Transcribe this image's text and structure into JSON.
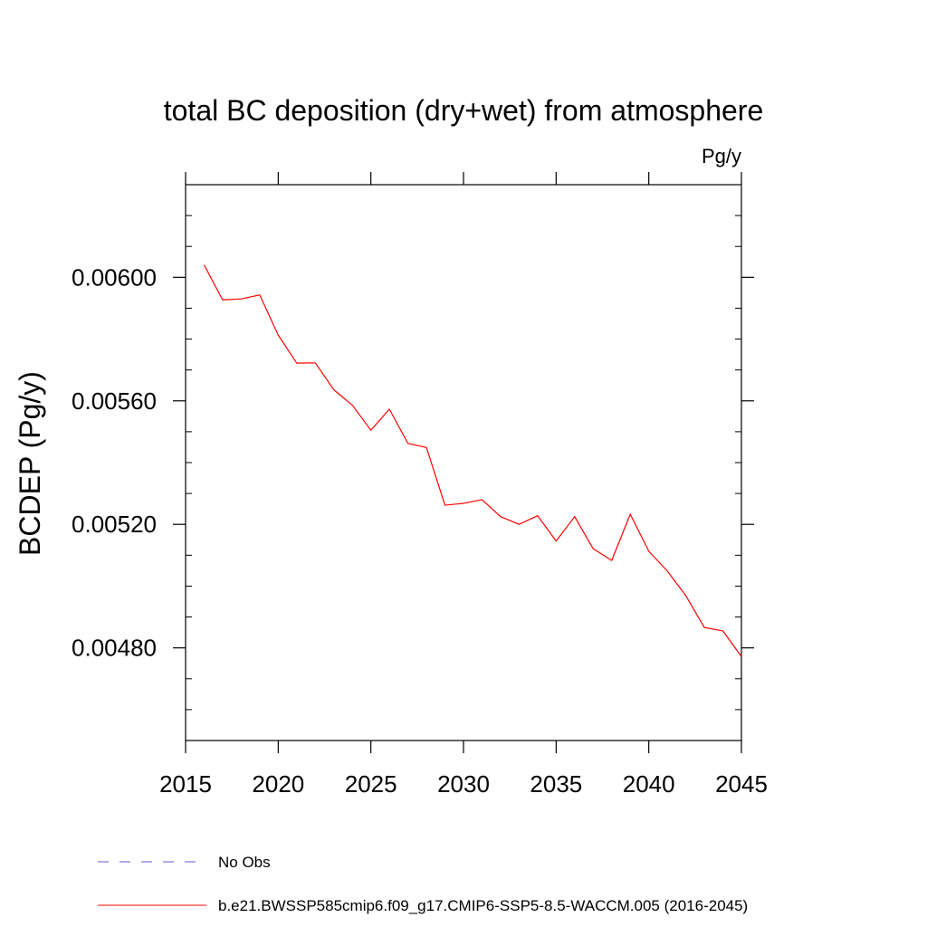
{
  "chart_data": {
    "type": "line",
    "title": "total BC deposition (dry+wet) from atmosphere",
    "units_label": "Pg/y",
    "ylabel": "BCDEP  (Pg/y)",
    "xlabel": "",
    "xlim": [
      2015,
      2045
    ],
    "ylim": [
      0.0045,
      0.0063
    ],
    "x_ticks": [
      2015,
      2020,
      2025,
      2030,
      2035,
      2040,
      2045
    ],
    "x_tick_labels": [
      "2015",
      "2020",
      "2025",
      "2030",
      "2035",
      "2040",
      "2045"
    ],
    "y_ticks": [
      0.0048,
      0.0052,
      0.0056,
      0.006
    ],
    "y_tick_labels": [
      "0.00480",
      "0.00520",
      "0.00560",
      "0.00600"
    ],
    "grid": false,
    "legend_position": "bottom",
    "series": [
      {
        "name": "b.e21.BWSSP585cmip6.f09_g17.CMIP6-SSP5-8.5-WACCM.005 (2016-2045)",
        "color": "#ff0000",
        "style": "solid",
        "x": [
          2016,
          2017,
          2018,
          2019,
          2020,
          2021,
          2022,
          2023,
          2024,
          2025,
          2026,
          2027,
          2028,
          2029,
          2030,
          2031,
          2032,
          2033,
          2034,
          2035,
          2036,
          2037,
          2038,
          2039,
          2040,
          2041,
          2042,
          2043,
          2044,
          2045
        ],
        "y": [
          0.00604,
          0.005927,
          0.00593,
          0.005943,
          0.005813,
          0.005722,
          0.005723,
          0.005636,
          0.005586,
          0.005505,
          0.005573,
          0.005462,
          0.005449,
          0.005262,
          0.005268,
          0.00528,
          0.005225,
          0.0052,
          0.005228,
          0.005146,
          0.005225,
          0.005121,
          0.005083,
          0.005233,
          0.005113,
          0.005049,
          0.004969,
          0.004866,
          0.004855,
          0.004772
        ]
      }
    ],
    "legend": [
      {
        "label": "No Obs",
        "color": "#6a5acd",
        "style": "dashed"
      },
      {
        "label": "b.e21.BWSSP585cmip6.f09_g17.CMIP6-SSP5-8.5-WACCM.005 (2016-2045)",
        "color": "#ff0000",
        "style": "solid"
      }
    ]
  }
}
